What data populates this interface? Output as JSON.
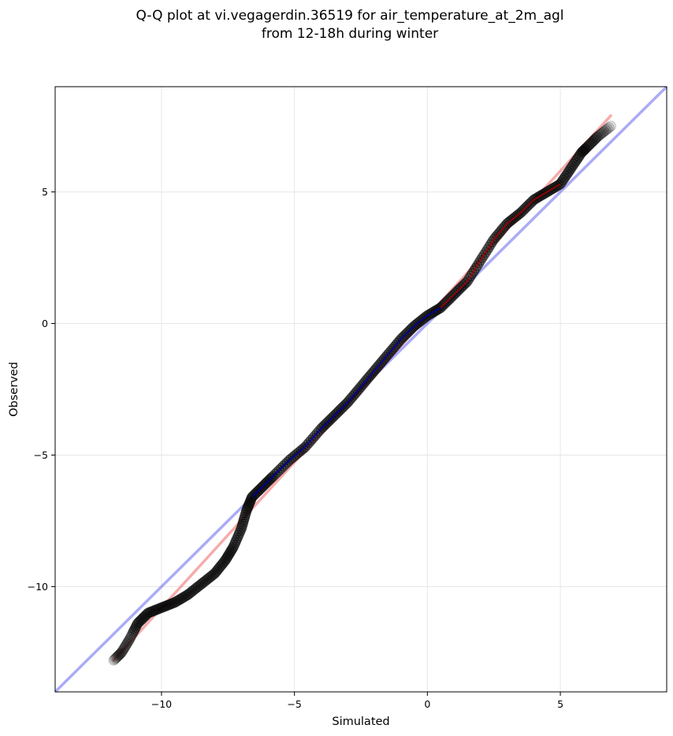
{
  "chart_data": {
    "type": "scatter",
    "title": [
      "Q-Q plot at vi.vegagerdin.36519 for air_temperature_at_2m_agl",
      "from 12-18h during winter"
    ],
    "xlabel": "Simulated",
    "ylabel": "Observed",
    "xlim": [
      -14,
      9
    ],
    "ylim": [
      -14,
      9
    ],
    "xticks": [
      -10,
      -5,
      0,
      5
    ],
    "yticks": [
      -10,
      -5,
      0,
      5
    ],
    "xtick_labels": [
      "−10",
      "−5",
      "0",
      "5"
    ],
    "ytick_labels": [
      "−10",
      "−5",
      "0",
      "5"
    ],
    "grid": true,
    "colors": {
      "points": "#000000",
      "identity_line": "#6666ee",
      "fit_line": "#ee6666",
      "inner_low": "#0000aa",
      "inner_high": "#aa0000",
      "grid": "#e6e6e6"
    },
    "identity_line": {
      "from": [
        -14,
        -14
      ],
      "to": [
        9,
        9
      ]
    },
    "fit_line": {
      "from": [
        -11.8,
        -12.8
      ],
      "to": [
        6.9,
        7.9
      ]
    },
    "quantile_curve": [
      [
        -11.8,
        -12.8
      ],
      [
        -11.5,
        -12.5
      ],
      [
        -11.2,
        -12.0
      ],
      [
        -10.9,
        -11.4
      ],
      [
        -10.5,
        -11.0
      ],
      [
        -10.0,
        -10.8
      ],
      [
        -9.5,
        -10.6
      ],
      [
        -9.0,
        -10.3
      ],
      [
        -8.5,
        -9.9
      ],
      [
        -8.0,
        -9.5
      ],
      [
        -7.6,
        -9.0
      ],
      [
        -7.3,
        -8.5
      ],
      [
        -7.0,
        -7.8
      ],
      [
        -6.8,
        -7.1
      ],
      [
        -6.6,
        -6.6
      ],
      [
        -6.2,
        -6.2
      ],
      [
        -5.8,
        -5.8
      ],
      [
        -5.2,
        -5.2
      ],
      [
        -4.6,
        -4.7
      ],
      [
        -4.0,
        -4.0
      ],
      [
        -3.5,
        -3.5
      ],
      [
        -3.0,
        -3.0
      ],
      [
        -2.5,
        -2.4
      ],
      [
        -2.0,
        -1.8
      ],
      [
        -1.5,
        -1.2
      ],
      [
        -1.0,
        -0.6
      ],
      [
        -0.5,
        -0.1
      ],
      [
        0.0,
        0.3
      ],
      [
        0.5,
        0.6
      ],
      [
        1.0,
        1.1
      ],
      [
        1.5,
        1.6
      ],
      [
        2.0,
        2.4
      ],
      [
        2.5,
        3.2
      ],
      [
        3.0,
        3.8
      ],
      [
        3.5,
        4.2
      ],
      [
        4.0,
        4.7
      ],
      [
        4.5,
        5.0
      ],
      [
        5.0,
        5.3
      ],
      [
        5.4,
        5.9
      ],
      [
        5.8,
        6.5
      ],
      [
        6.1,
        6.8
      ],
      [
        6.4,
        7.1
      ],
      [
        6.9,
        7.5
      ]
    ]
  }
}
